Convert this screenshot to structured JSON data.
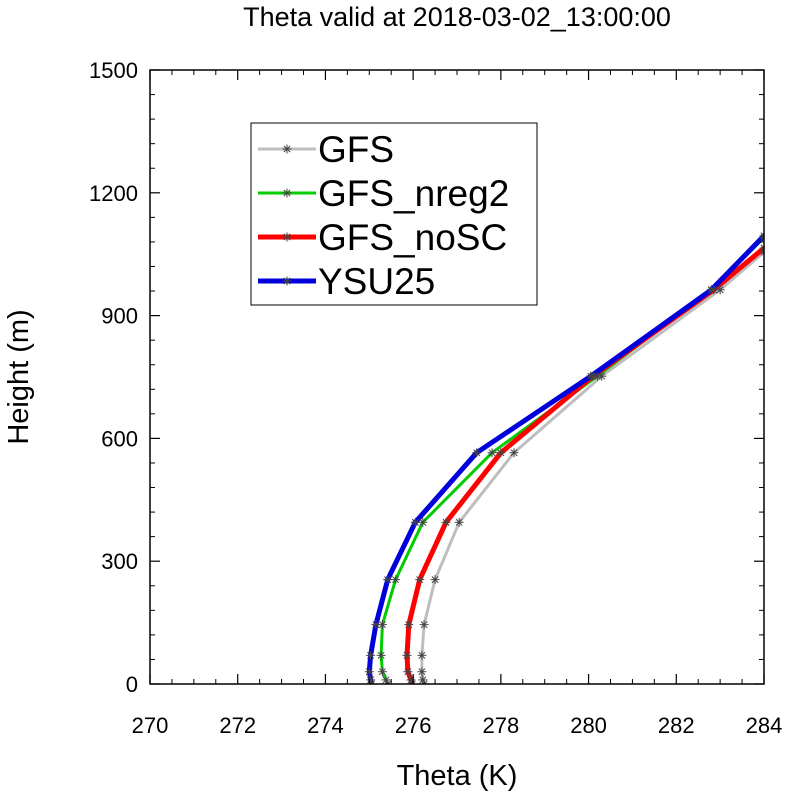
{
  "chart_data": {
    "type": "line",
    "title": "Theta valid at 2018-03-02_13:00:00",
    "xlabel": "Theta (K)",
    "ylabel": "Height (m)",
    "xlim": [
      270,
      284
    ],
    "ylim": [
      0,
      1500
    ],
    "x_ticks": [
      "270",
      "272",
      "274",
      "276",
      "278",
      "280",
      "282",
      "284"
    ],
    "y_ticks": [
      "0",
      "300",
      "600",
      "900",
      "1200",
      "1500"
    ],
    "x_tick_values": [
      270,
      272,
      274,
      276,
      278,
      280,
      282,
      284
    ],
    "y_tick_values": [
      0,
      300,
      600,
      900,
      1200,
      1500
    ],
    "grid": false,
    "legend_position": "top-left",
    "series": [
      {
        "name": "GFS",
        "color": "#bebebe",
        "marker": "asterisk",
        "points": [
          [
            276.25,
            0
          ],
          [
            276.22,
            10
          ],
          [
            276.2,
            30
          ],
          [
            276.2,
            70
          ],
          [
            276.25,
            145
          ],
          [
            276.5,
            255
          ],
          [
            277.05,
            395
          ],
          [
            278.3,
            565
          ],
          [
            280.3,
            752
          ],
          [
            283.0,
            963
          ],
          [
            284.0,
            1055
          ]
        ]
      },
      {
        "name": "GFS_nreg2",
        "color": "#00cc00",
        "marker": "asterisk",
        "points": [
          [
            275.42,
            0
          ],
          [
            275.38,
            10
          ],
          [
            275.3,
            30
          ],
          [
            275.27,
            70
          ],
          [
            275.3,
            145
          ],
          [
            275.6,
            255
          ],
          [
            276.22,
            395
          ],
          [
            277.8,
            565
          ],
          [
            280.2,
            752
          ],
          [
            282.8,
            963
          ],
          [
            284.0,
            1090
          ]
        ]
      },
      {
        "name": "GFS_noSC",
        "color": "#ff0000",
        "marker": "asterisk",
        "points": [
          [
            275.98,
            0
          ],
          [
            275.95,
            10
          ],
          [
            275.88,
            30
          ],
          [
            275.86,
            70
          ],
          [
            275.9,
            145
          ],
          [
            276.15,
            255
          ],
          [
            276.75,
            395
          ],
          [
            278.0,
            565
          ],
          [
            280.1,
            752
          ],
          [
            282.85,
            963
          ],
          [
            284.0,
            1065
          ]
        ]
      },
      {
        "name": "YSU25",
        "color": "#0000dd",
        "marker": "asterisk",
        "points": [
          [
            275.05,
            0
          ],
          [
            275.03,
            10
          ],
          [
            275.0,
            30
          ],
          [
            275.03,
            70
          ],
          [
            275.15,
            145
          ],
          [
            275.42,
            255
          ],
          [
            276.05,
            395
          ],
          [
            277.45,
            565
          ],
          [
            280.05,
            752
          ],
          [
            282.8,
            963
          ],
          [
            284.0,
            1095
          ]
        ]
      }
    ]
  }
}
